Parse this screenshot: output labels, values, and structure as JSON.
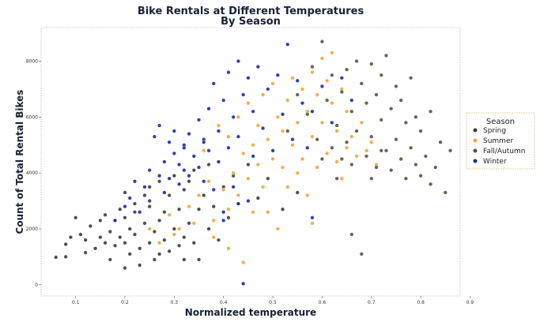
{
  "chart_data": {
    "type": "scatter",
    "title": "Bike Rentals at Different Temperatures",
    "subtitle": "By Season",
    "xlabel": "Normalized temperature",
    "ylabel": "Count of Total Rental Bikes",
    "xlim": [
      0.03,
      0.88
    ],
    "ylim": [
      -400,
      9200
    ],
    "xticks": [
      "0.1",
      "0.2",
      "0.3",
      "0.4",
      "0.5",
      "0.6",
      "0.7",
      "0.8",
      "0.9"
    ],
    "yticks": [
      "0",
      "2000",
      "4000",
      "6000",
      "8000"
    ],
    "grid": false,
    "legend": {
      "title": "Season",
      "position": "right",
      "entries": [
        "Spring",
        "Summer",
        "Fall/Autumn",
        "Winter"
      ]
    },
    "colors": {
      "Spring": "#3a3d36",
      "Summer": "#f2a33a",
      "Fall/Autumn": "#5b5338",
      "Winter": "#1c2a9c"
    },
    "series": [
      {
        "name": "Spring",
        "points": [
          [
            0.06,
            985
          ],
          [
            0.08,
            1000
          ],
          [
            0.08,
            1450
          ],
          [
            0.09,
            1700
          ],
          [
            0.1,
            2400
          ],
          [
            0.11,
            1800
          ],
          [
            0.12,
            1600
          ],
          [
            0.12,
            1150
          ],
          [
            0.13,
            2100
          ],
          [
            0.14,
            1300
          ],
          [
            0.15,
            1700
          ],
          [
            0.15,
            2300
          ],
          [
            0.16,
            1500
          ],
          [
            0.16,
            2500
          ],
          [
            0.17,
            900
          ],
          [
            0.17,
            1900
          ],
          [
            0.18,
            1400
          ],
          [
            0.18,
            2300
          ],
          [
            0.19,
            1700
          ],
          [
            0.19,
            2700
          ],
          [
            0.2,
            1500
          ],
          [
            0.2,
            3300
          ],
          [
            0.2,
            600
          ],
          [
            0.21,
            2000
          ],
          [
            0.21,
            1100
          ],
          [
            0.22,
            1800
          ],
          [
            0.22,
            2900
          ],
          [
            0.23,
            1300
          ],
          [
            0.23,
            700
          ],
          [
            0.24,
            2200
          ],
          [
            0.24,
            3200
          ],
          [
            0.25,
            1500
          ],
          [
            0.25,
            2800
          ],
          [
            0.26,
            1900
          ],
          [
            0.26,
            900
          ],
          [
            0.27,
            2300
          ],
          [
            0.27,
            3700
          ],
          [
            0.28,
            1600
          ],
          [
            0.28,
            2600
          ],
          [
            0.29,
            1200
          ],
          [
            0.29,
            3200
          ],
          [
            0.3,
            2000
          ],
          [
            0.3,
            3900
          ],
          [
            0.31,
            1400
          ],
          [
            0.31,
            2700
          ],
          [
            0.32,
            3400
          ],
          [
            0.32,
            1700
          ],
          [
            0.33,
            2200
          ],
          [
            0.33,
            3700
          ],
          [
            0.34,
            1500
          ],
          [
            0.34,
            4100
          ],
          [
            0.35,
            2700
          ],
          [
            0.35,
            900
          ],
          [
            0.36,
            3200
          ],
          [
            0.37,
            2000
          ],
          [
            0.37,
            4300
          ],
          [
            0.38,
            2800
          ],
          [
            0.39,
            1600
          ],
          [
            0.4,
            3500
          ],
          [
            0.41,
            2400
          ],
          [
            0.42,
            3900
          ],
          [
            0.43,
            2900
          ],
          [
            0.45,
            4300
          ],
          [
            0.47,
            3100
          ],
          [
            0.49,
            3800
          ],
          [
            0.52,
            2700
          ],
          [
            0.55,
            3300
          ],
          [
            0.2,
            2400
          ],
          [
            0.27,
            1100
          ],
          [
            0.32,
            900
          ],
          [
            0.25,
            3500
          ],
          [
            0.22,
            2600
          ]
        ]
      },
      {
        "name": "Summer",
        "points": [
          [
            0.25,
            2000
          ],
          [
            0.27,
            1500
          ],
          [
            0.29,
            2500
          ],
          [
            0.31,
            2000
          ],
          [
            0.33,
            2800
          ],
          [
            0.35,
            3200
          ],
          [
            0.37,
            3700
          ],
          [
            0.38,
            2300
          ],
          [
            0.39,
            4400
          ],
          [
            0.4,
            3400
          ],
          [
            0.41,
            5300
          ],
          [
            0.41,
            2700
          ],
          [
            0.42,
            4000
          ],
          [
            0.43,
            6000
          ],
          [
            0.43,
            3200
          ],
          [
            0.44,
            4700
          ],
          [
            0.44,
            800
          ],
          [
            0.45,
            6500
          ],
          [
            0.45,
            3800
          ],
          [
            0.46,
            5000
          ],
          [
            0.46,
            2600
          ],
          [
            0.47,
            5700
          ],
          [
            0.47,
            4300
          ],
          [
            0.48,
            6800
          ],
          [
            0.48,
            3500
          ],
          [
            0.49,
            5200
          ],
          [
            0.5,
            7200
          ],
          [
            0.5,
            4500
          ],
          [
            0.51,
            6000
          ],
          [
            0.51,
            2000
          ],
          [
            0.52,
            5500
          ],
          [
            0.52,
            4200
          ],
          [
            0.53,
            6600
          ],
          [
            0.53,
            3500
          ],
          [
            0.54,
            7400
          ],
          [
            0.54,
            5000
          ],
          [
            0.55,
            5800
          ],
          [
            0.55,
            4000
          ],
          [
            0.56,
            7000
          ],
          [
            0.56,
            4500
          ],
          [
            0.57,
            6200
          ],
          [
            0.57,
            3200
          ],
          [
            0.58,
            7600
          ],
          [
            0.58,
            5300
          ],
          [
            0.59,
            6800
          ],
          [
            0.59,
            4200
          ],
          [
            0.6,
            8100
          ],
          [
            0.6,
            5800
          ],
          [
            0.61,
            7300
          ],
          [
            0.61,
            4700
          ],
          [
            0.62,
            6500
          ],
          [
            0.62,
            8300
          ],
          [
            0.63,
            5500
          ],
          [
            0.63,
            4400
          ],
          [
            0.64,
            7000
          ],
          [
            0.64,
            3800
          ],
          [
            0.65,
            6200
          ],
          [
            0.65,
            4900
          ],
          [
            0.66,
            5300
          ],
          [
            0.67,
            4600
          ],
          [
            0.68,
            5800
          ],
          [
            0.69,
            4800
          ],
          [
            0.7,
            5100
          ],
          [
            0.71,
            4300
          ],
          [
            0.36,
            4800
          ],
          [
            0.39,
            5700
          ],
          [
            0.38,
            1700
          ],
          [
            0.34,
            2200
          ],
          [
            0.3,
            1800
          ],
          [
            0.41,
            1300
          ],
          [
            0.58,
            2200
          ],
          [
            0.49,
            2600
          ]
        ]
      },
      {
        "name": "Fall/Autumn",
        "points": [
          [
            0.53,
            5500
          ],
          [
            0.55,
            6800
          ],
          [
            0.57,
            6100
          ],
          [
            0.58,
            7800
          ],
          [
            0.59,
            5200
          ],
          [
            0.6,
            8700
          ],
          [
            0.61,
            6600
          ],
          [
            0.62,
            4900
          ],
          [
            0.62,
            7500
          ],
          [
            0.63,
            5700
          ],
          [
            0.63,
            3800
          ],
          [
            0.64,
            6900
          ],
          [
            0.64,
            4500
          ],
          [
            0.65,
            7700
          ],
          [
            0.65,
            5100
          ],
          [
            0.66,
            6200
          ],
          [
            0.66,
            4300
          ],
          [
            0.67,
            8000
          ],
          [
            0.67,
            5500
          ],
          [
            0.68,
            7200
          ],
          [
            0.68,
            1100
          ],
          [
            0.69,
            4600
          ],
          [
            0.69,
            6500
          ],
          [
            0.7,
            7900
          ],
          [
            0.7,
            5300
          ],
          [
            0.71,
            6800
          ],
          [
            0.71,
            4200
          ],
          [
            0.72,
            7500
          ],
          [
            0.72,
            5900
          ],
          [
            0.73,
            4800
          ],
          [
            0.73,
            8200
          ],
          [
            0.74,
            6300
          ],
          [
            0.74,
            4100
          ],
          [
            0.75,
            7100
          ],
          [
            0.75,
            5200
          ],
          [
            0.76,
            4500
          ],
          [
            0.76,
            6600
          ],
          [
            0.77,
            3800
          ],
          [
            0.77,
            5800
          ],
          [
            0.78,
            7400
          ],
          [
            0.78,
            4900
          ],
          [
            0.79,
            4300
          ],
          [
            0.79,
            6000
          ],
          [
            0.8,
            3900
          ],
          [
            0.8,
            5500
          ],
          [
            0.81,
            4600
          ],
          [
            0.82,
            6200
          ],
          [
            0.82,
            3600
          ],
          [
            0.83,
            4200
          ],
          [
            0.84,
            5100
          ],
          [
            0.85,
            3300
          ],
          [
            0.86,
            4800
          ],
          [
            0.66,
            1800
          ],
          [
            0.72,
            4800
          ],
          [
            0.7,
            3800
          ],
          [
            0.6,
            4500
          ]
        ]
      },
      {
        "name": "Winter",
        "points": [
          [
            0.18,
            2300
          ],
          [
            0.2,
            2800
          ],
          [
            0.21,
            3100
          ],
          [
            0.22,
            3700
          ],
          [
            0.23,
            2600
          ],
          [
            0.24,
            3500
          ],
          [
            0.25,
            4100
          ],
          [
            0.25,
            3000
          ],
          [
            0.26,
            5300
          ],
          [
            0.27,
            3900
          ],
          [
            0.27,
            5700
          ],
          [
            0.28,
            4400
          ],
          [
            0.28,
            3300
          ],
          [
            0.29,
            5100
          ],
          [
            0.29,
            3800
          ],
          [
            0.3,
            4700
          ],
          [
            0.3,
            5500
          ],
          [
            0.31,
            3600
          ],
          [
            0.31,
            4300
          ],
          [
            0.32,
            5000
          ],
          [
            0.32,
            4100
          ],
          [
            0.33,
            5400
          ],
          [
            0.33,
            3900
          ],
          [
            0.34,
            4600
          ],
          [
            0.35,
            5900
          ],
          [
            0.35,
            4200
          ],
          [
            0.36,
            3700
          ],
          [
            0.36,
            5200
          ],
          [
            0.37,
            6300
          ],
          [
            0.37,
            4800
          ],
          [
            0.38,
            3400
          ],
          [
            0.38,
            7200
          ],
          [
            0.39,
            5500
          ],
          [
            0.39,
            4400
          ],
          [
            0.4,
            6600
          ],
          [
            0.4,
            2600
          ],
          [
            0.41,
            7600
          ],
          [
            0.41,
            4900
          ],
          [
            0.42,
            6000
          ],
          [
            0.42,
            3500
          ],
          [
            0.43,
            8000
          ],
          [
            0.43,
            5300
          ],
          [
            0.44,
            6800
          ],
          [
            0.44,
            40
          ],
          [
            0.45,
            7400
          ],
          [
            0.45,
            3000
          ],
          [
            0.46,
            6200
          ],
          [
            0.46,
            4600
          ],
          [
            0.47,
            7800
          ],
          [
            0.48,
            5600
          ],
          [
            0.49,
            7000
          ],
          [
            0.5,
            4800
          ],
          [
            0.51,
            7500
          ],
          [
            0.52,
            6100
          ],
          [
            0.53,
            8600
          ],
          [
            0.54,
            5200
          ],
          [
            0.55,
            7300
          ],
          [
            0.56,
            6500
          ],
          [
            0.57,
            4900
          ],
          [
            0.58,
            6200
          ],
          [
            0.6,
            7100
          ],
          [
            0.62,
            5800
          ],
          [
            0.64,
            7400
          ],
          [
            0.66,
            6600
          ],
          [
            0.4,
            2300
          ],
          [
            0.43,
            2900
          ],
          [
            0.58,
            2400
          ],
          [
            0.36,
            5100
          ],
          [
            0.32,
            4900
          ]
        ]
      }
    ]
  }
}
